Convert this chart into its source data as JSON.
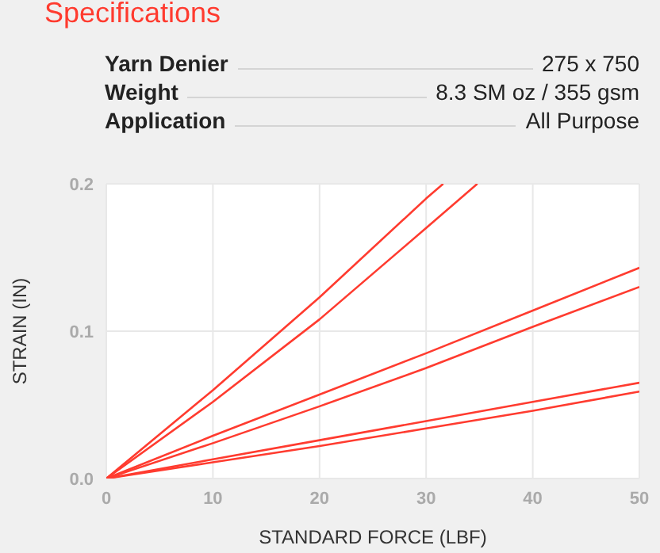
{
  "chart_data": {
    "type": "line",
    "title": "Specifications",
    "annotations": [
      "Yarn Denier",
      "275 x 750",
      "Weight",
      "8.3 SM oz / 355 gsm",
      "Application",
      "All Purpose"
    ],
    "xlabel": "STANDARD FORCE  (LBF)",
    "ylabel": "STRAIN  (IN)",
    "xlim": [
      0,
      50
    ],
    "xticks": [
      0,
      10,
      20,
      30,
      40,
      50
    ],
    "ylim": [
      0,
      0.2
    ],
    "yticks": [
      {
        "value": 0,
        "label": "0.0"
      },
      0.1,
      0.2
    ],
    "grid": true,
    "marker": "none",
    "line_style": "solid",
    "series": [
      {
        "color": "#ff3b2f",
        "x": [
          0,
          10,
          20,
          30,
          31.6
        ],
        "values": [
          0,
          0.06,
          0.123,
          0.19,
          0.2
        ]
      },
      {
        "color": "#ff3b2f",
        "x": [
          0,
          10,
          20,
          30,
          34.8
        ],
        "values": [
          0,
          0.052,
          0.108,
          0.17,
          0.2
        ]
      },
      {
        "color": "#ff3b2f",
        "x": [
          0,
          10,
          20,
          30,
          40,
          50
        ],
        "values": [
          0,
          0.029,
          0.057,
          0.085,
          0.114,
          0.143
        ]
      },
      {
        "color": "#ff3b2f",
        "x": [
          0,
          10,
          20,
          30,
          40,
          50
        ],
        "values": [
          0,
          0.024,
          0.049,
          0.075,
          0.103,
          0.13
        ]
      },
      {
        "color": "#ff3b2f",
        "x": [
          0,
          10,
          20,
          30,
          40,
          50
        ],
        "values": [
          0,
          0.013,
          0.026,
          0.039,
          0.052,
          0.065
        ]
      },
      {
        "color": "#ff3b2f",
        "x": [
          0,
          10,
          20,
          30,
          40,
          50
        ],
        "values": [
          0,
          0.011,
          0.022,
          0.034,
          0.046,
          0.059
        ]
      }
    ]
  }
}
